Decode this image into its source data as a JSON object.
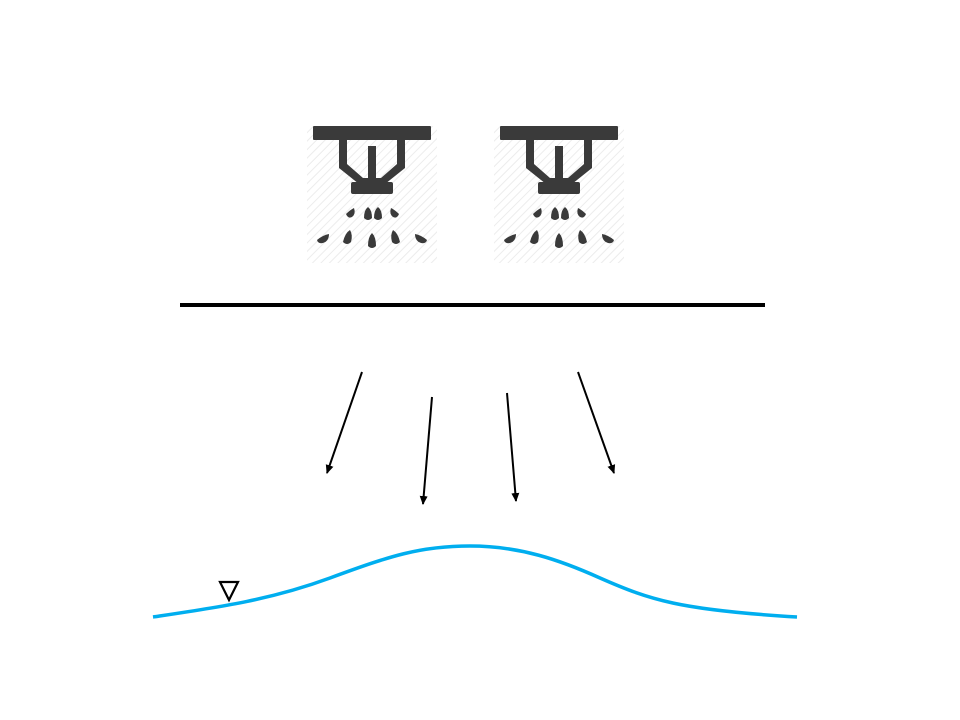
{
  "diagram": {
    "sprinklers": [
      {
        "icon": "sprinkler-icon"
      },
      {
        "icon": "sprinkler-icon"
      }
    ],
    "arrow_count": 4,
    "water_table_icon": "water-table-triangle-icon",
    "colors": {
      "background": "#ffffff",
      "sprinkler": "#3a3a3a",
      "sprinkler_hatch": "#e6e6e6",
      "divider": "#000000",
      "arrows": "#000000",
      "water_table": "#00aeef",
      "water_table_symbol": "#000000"
    }
  }
}
